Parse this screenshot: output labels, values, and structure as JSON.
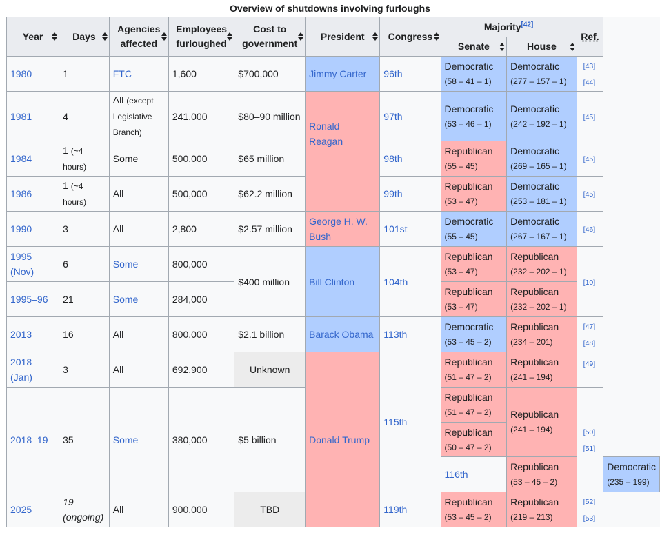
{
  "caption": "Overview of shutdowns involving furloughs",
  "headers": {
    "year": "Year",
    "days": "Days",
    "agencies_1": "Agencies",
    "agencies_2": "affected",
    "employees_1": "Employees",
    "employees_2": "furloughed",
    "cost_1": "Cost to",
    "cost_2": "government",
    "president": "President",
    "congress": "Congress",
    "majority": "Majority",
    "majority_ref": "[42]",
    "senate": "Senate",
    "house": "House",
    "ref": "Ref."
  },
  "colors": {
    "democratic": "#b0ceff",
    "republican": "#ffb3b3",
    "link": "#3366cc"
  },
  "rows": [
    {
      "year": "1980",
      "days": "1",
      "agencies": "FTC",
      "employees": "1,600",
      "cost": "$700,000",
      "president": "Jimmy Carter",
      "congress": "96th",
      "senate_party": "Democratic",
      "senate_seats": "(58 – 41 – 1)",
      "house_party": "Democratic",
      "house_seats": "(277 – 157 – 1)",
      "ref1": "[43]",
      "ref2": "[44]"
    },
    {
      "year": "1981",
      "days": "4",
      "agencies_1": "All",
      "agencies_2": "(except",
      "agencies_3": "Legislative",
      "agencies_4": "Branch)",
      "employees": "241,000",
      "cost": "$80–90 million",
      "congress": "97th",
      "senate_party": "Democratic",
      "senate_seats": "(53 – 46 – 1)",
      "house_party": "Democratic",
      "house_seats": "(242 – 192 – 1)",
      "ref1": "[45]"
    },
    {
      "year": "1984",
      "days_1": "1",
      "days_2": "(~4",
      "days_3": "hours)",
      "agencies": "Some",
      "employees": "500,000",
      "cost": "$65 million",
      "president": "Ronald Reagan",
      "congress": "98th",
      "senate_party": "Republican",
      "senate_seats": "(55 – 45)",
      "house_party": "Democratic",
      "house_seats": "(269 – 165 – 1)",
      "ref1": "[45]"
    },
    {
      "year": "1986",
      "days_1": "1",
      "days_2": "(~4",
      "days_3": "hours)",
      "agencies": "All",
      "employees": "500,000",
      "cost": "$62.2 million",
      "congress": "99th",
      "senate_party": "Republican",
      "senate_seats": "(53 – 47)",
      "house_party": "Democratic",
      "house_seats": "(253 – 181 – 1)",
      "ref1": "[45]"
    },
    {
      "year": "1990",
      "days": "3",
      "agencies": "All",
      "employees": "2,800",
      "cost": "$2.57 million",
      "president_1": "George H. W.",
      "president_2": "Bush",
      "congress": "101st",
      "senate_party": "Democratic",
      "senate_seats": "(55 – 45)",
      "house_party": "Democratic",
      "house_seats": "(267 – 167 – 1)",
      "ref1": "[46]"
    },
    {
      "year": "1995 (Nov)",
      "days": "6",
      "agencies": "Some",
      "employees": "800,000",
      "cost": "$400 million",
      "president": "Bill Clinton",
      "congress": "104th",
      "senate_party": "Republican",
      "senate_seats": "(53 – 47)",
      "house_party": "Republican",
      "house_seats": "(232 – 202 – 1)",
      "ref1": "[10]"
    },
    {
      "year": "1995–96",
      "days": "21",
      "agencies": "Some",
      "employees": "284,000",
      "senate_party": "Republican",
      "senate_seats": "(53 – 47)",
      "house_party": "Republican",
      "house_seats": "(232 – 202 – 1)"
    },
    {
      "year": "2013",
      "days": "16",
      "agencies": "All",
      "employees": "800,000",
      "cost": "$2.1 billion",
      "president": "Barack Obama",
      "congress": "113th",
      "senate_party": "Democratic",
      "senate_seats": "(53 – 45 – 2)",
      "house_party": "Republican",
      "house_seats": "(234 – 201)",
      "ref1": "[47]",
      "ref2": "[48]"
    },
    {
      "year": "2018 (Jan)",
      "days": "3",
      "agencies": "All",
      "employees": "692,900",
      "cost": "Unknown",
      "president": "Donald Trump",
      "senate_party": "Republican",
      "senate_seats": "(51 – 47 – 2)",
      "house_party": "Republican",
      "house_seats": "(241 – 194)",
      "ref1": "[49]"
    },
    {
      "year": "2018–19",
      "days": "35",
      "agencies": "Some",
      "employees": "380,000",
      "cost": "$5 billion",
      "congress": "115th",
      "senate_party": "Republican",
      "senate_seats": "(51 – 47 – 2)",
      "house_party": "Republican",
      "house_seats": "(241 – 194)",
      "ref1": "[50]",
      "ref2": "[51]",
      "senate2_party": "Republican",
      "senate2_seats": "(50 – 47 – 2)",
      "congress2": "116th",
      "senate3_party": "Republican",
      "senate3_seats": "(53 – 45 – 2)",
      "house3_party": "Democratic",
      "house3_seats": "(235 – 199)"
    },
    {
      "year": "2025",
      "days_1": "19",
      "days_2": "(ongoing)",
      "agencies": "All",
      "employees": "900,000",
      "cost": "TBD",
      "congress": "119th",
      "senate_party": "Republican",
      "senate_seats": "(53 – 45 – 2)",
      "house_party": "Republican",
      "house_seats": "(219 – 213)",
      "ref1": "[52]",
      "ref2": "[53]"
    }
  ]
}
